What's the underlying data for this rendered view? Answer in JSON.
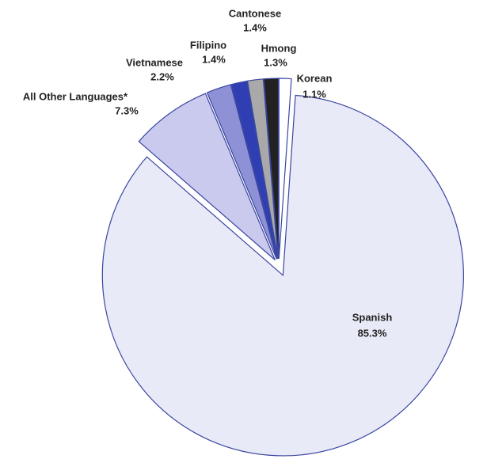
{
  "chart_data": {
    "type": "pie",
    "categories": [
      "Korean",
      "Spanish",
      "All Other Languages*",
      "Vietnamese",
      "Filipino",
      "Cantonese",
      "Hmong"
    ],
    "values": [
      1.1,
      85.3,
      7.3,
      2.2,
      1.4,
      1.4,
      1.3
    ],
    "value_labels": [
      "1.1%",
      "85.3%",
      "7.3%",
      "2.2%",
      "1.4%",
      "1.4%",
      "1.3%"
    ],
    "colors": [
      "#ffffff",
      "#e9eaf8",
      "#c9caee",
      "#8e91d6",
      "#2f3fb3",
      "#a9a9a9",
      "#222222"
    ]
  }
}
